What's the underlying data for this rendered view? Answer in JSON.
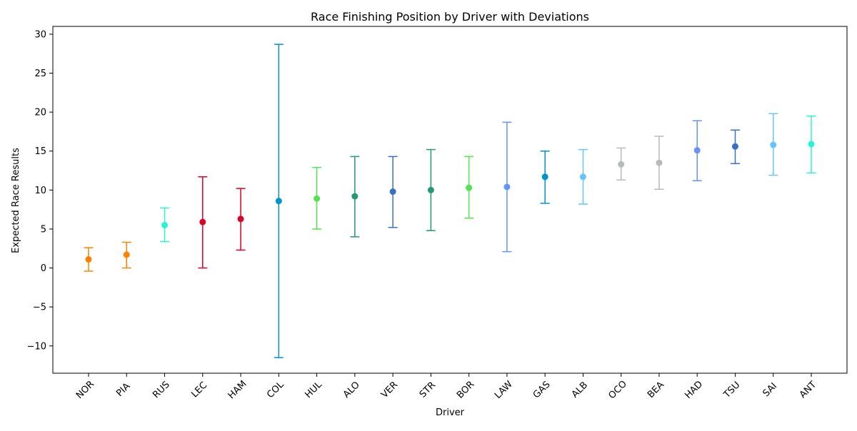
{
  "chart_data": {
    "type": "scatter",
    "title": "Race Finishing Position by Driver with Deviations",
    "xlabel": "Driver",
    "ylabel": "Expected Race Results",
    "ylim": [
      -13.5,
      31.0
    ],
    "yticks": [
      -10,
      -5,
      0,
      5,
      10,
      15,
      20,
      25,
      30
    ],
    "ytick_labels": [
      "−10",
      "−5",
      "0",
      "5",
      "10",
      "15",
      "20",
      "25",
      "30"
    ],
    "grid": false,
    "legend": "none",
    "points": [
      {
        "driver": "NOR",
        "mean": 1.1,
        "lower": -0.4,
        "upper": 2.6,
        "color": "#FF8000"
      },
      {
        "driver": "PIA",
        "mean": 1.7,
        "lower": 0.0,
        "upper": 3.3,
        "color": "#FF8000"
      },
      {
        "driver": "RUS",
        "mean": 5.5,
        "lower": 3.4,
        "upper": 7.7,
        "color": "#27F4D2"
      },
      {
        "driver": "LEC",
        "mean": 5.9,
        "lower": 0.0,
        "upper": 11.7,
        "color": "#DC0027"
      },
      {
        "driver": "HAM",
        "mean": 6.3,
        "lower": 2.3,
        "upper": 10.2,
        "color": "#DC0027"
      },
      {
        "driver": "COL",
        "mean": 8.6,
        "lower": -11.5,
        "upper": 28.7,
        "color": "#0093CC"
      },
      {
        "driver": "HUL",
        "mean": 8.9,
        "lower": 5.0,
        "upper": 12.9,
        "color": "#52E252"
      },
      {
        "driver": "ALO",
        "mean": 9.2,
        "lower": 4.0,
        "upper": 14.3,
        "color": "#229971"
      },
      {
        "driver": "VER",
        "mean": 9.8,
        "lower": 5.2,
        "upper": 14.3,
        "color": "#3671C6"
      },
      {
        "driver": "STR",
        "mean": 10.0,
        "lower": 4.8,
        "upper": 15.2,
        "color": "#229971"
      },
      {
        "driver": "BOR",
        "mean": 10.3,
        "lower": 6.4,
        "upper": 14.3,
        "color": "#52E252"
      },
      {
        "driver": "LAW",
        "mean": 10.4,
        "lower": 2.1,
        "upper": 18.7,
        "color": "#6692FF"
      },
      {
        "driver": "GAS",
        "mean": 11.7,
        "lower": 8.3,
        "upper": 15.0,
        "color": "#0093CC"
      },
      {
        "driver": "ALB",
        "mean": 11.7,
        "lower": 8.2,
        "upper": 15.2,
        "color": "#64C4FF"
      },
      {
        "driver": "OCO",
        "mean": 13.3,
        "lower": 11.3,
        "upper": 15.4,
        "color": "#B6BABD"
      },
      {
        "driver": "BEA",
        "mean": 13.5,
        "lower": 10.1,
        "upper": 16.9,
        "color": "#B6BABD"
      },
      {
        "driver": "HAD",
        "mean": 15.1,
        "lower": 11.2,
        "upper": 18.9,
        "color": "#6692FF"
      },
      {
        "driver": "TSU",
        "mean": 15.6,
        "lower": 13.4,
        "upper": 17.7,
        "color": "#3671C6"
      },
      {
        "driver": "SAI",
        "mean": 15.8,
        "lower": 11.9,
        "upper": 19.8,
        "color": "#64C4FF"
      },
      {
        "driver": "ANT",
        "mean": 15.9,
        "lower": 12.2,
        "upper": 19.5,
        "color": "#27F4D2"
      }
    ]
  }
}
